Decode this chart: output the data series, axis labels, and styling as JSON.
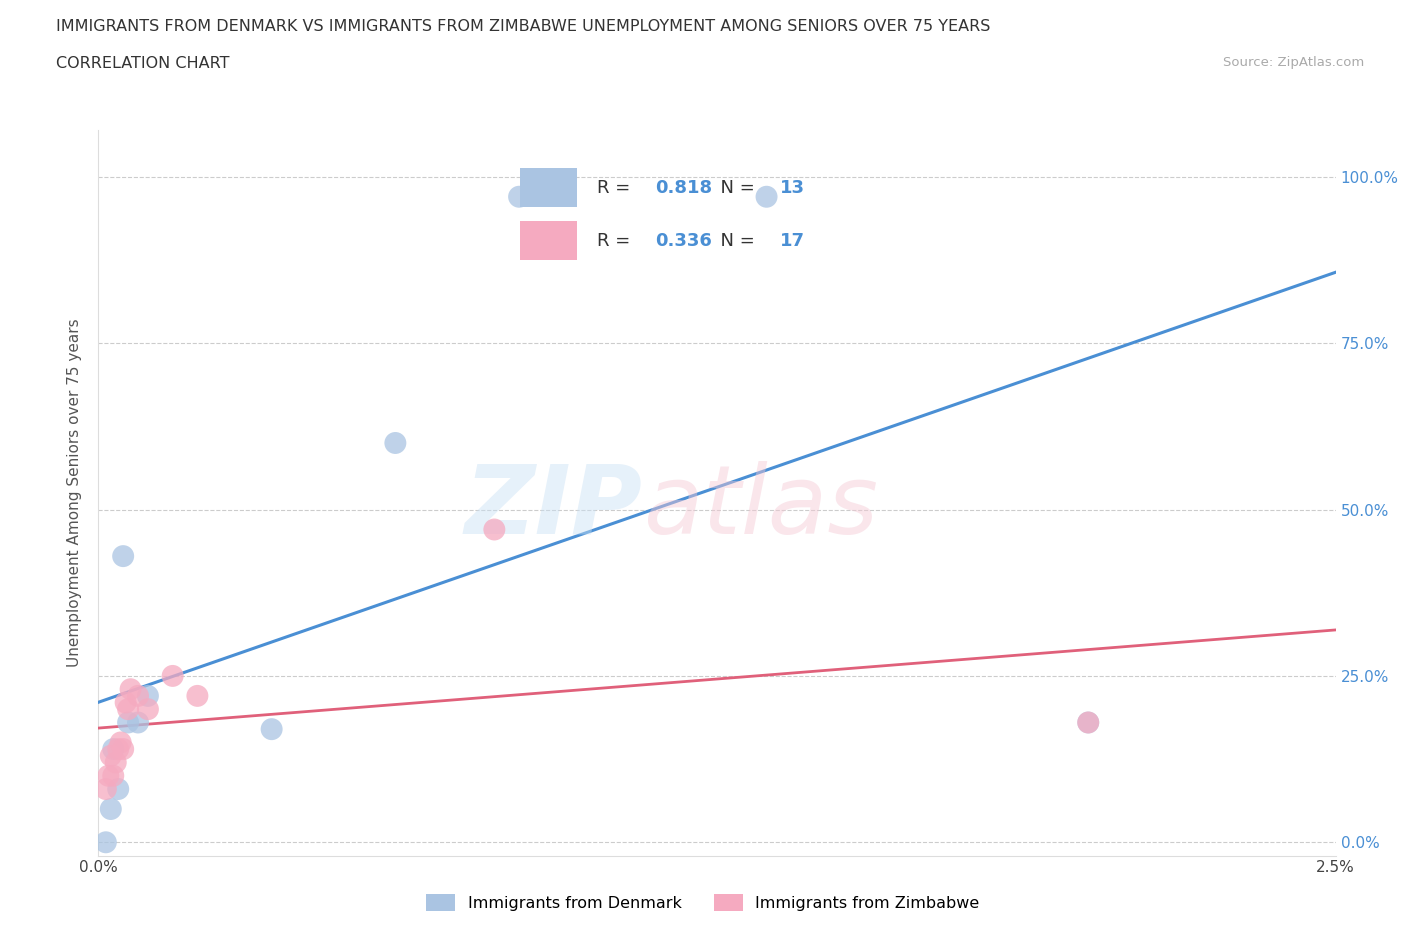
{
  "title_line1": "IMMIGRANTS FROM DENMARK VS IMMIGRANTS FROM ZIMBABWE UNEMPLOYMENT AMONG SENIORS OVER 75 YEARS",
  "title_line2": "CORRELATION CHART",
  "source": "Source: ZipAtlas.com",
  "ylabel": "Unemployment Among Seniors over 75 years",
  "xlim": [
    0.0,
    0.025
  ],
  "ylim": [
    -0.02,
    1.07
  ],
  "yticks": [
    0.0,
    0.25,
    0.5,
    0.75,
    1.0
  ],
  "ytick_labels": [
    "0.0%",
    "25.0%",
    "50.0%",
    "75.0%",
    "100.0%"
  ],
  "xticks": [
    0.0,
    0.005,
    0.01,
    0.015,
    0.02,
    0.025
  ],
  "xtick_labels": [
    "0.0%",
    "",
    "",
    "",
    "",
    "2.5%"
  ],
  "denmark_color": "#aac4e2",
  "zimbabwe_color": "#f5aac0",
  "trendline_denmark_color": "#4a8fd4",
  "trendline_zimbabwe_color": "#e0607a",
  "R_denmark": 0.818,
  "N_denmark": 13,
  "R_zimbabwe": 0.336,
  "N_zimbabwe": 17,
  "denmark_x": [
    0.00015,
    0.00025,
    0.0003,
    0.0004,
    0.0005,
    0.0006,
    0.0008,
    0.001,
    0.0035,
    0.006,
    0.0085,
    0.0135,
    0.02
  ],
  "denmark_y": [
    0.0,
    0.05,
    0.14,
    0.08,
    0.43,
    0.18,
    0.18,
    0.22,
    0.17,
    0.6,
    0.97,
    0.97,
    0.18
  ],
  "zimbabwe_x": [
    0.00015,
    0.0002,
    0.00025,
    0.0003,
    0.00035,
    0.0004,
    0.00045,
    0.0005,
    0.00055,
    0.0006,
    0.00065,
    0.0008,
    0.001,
    0.0015,
    0.002,
    0.008,
    0.02
  ],
  "zimbabwe_y": [
    0.08,
    0.1,
    0.13,
    0.1,
    0.12,
    0.14,
    0.15,
    0.14,
    0.21,
    0.2,
    0.23,
    0.22,
    0.2,
    0.25,
    0.22,
    0.47,
    0.18
  ]
}
